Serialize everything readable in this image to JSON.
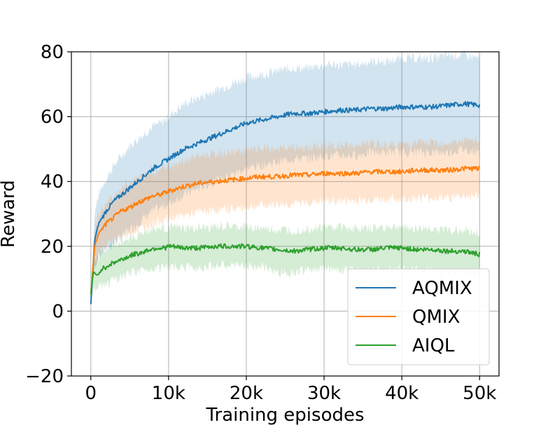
{
  "chart_data": {
    "type": "line",
    "title": "",
    "xlabel": "Training episodes",
    "ylabel": "Reward",
    "xlim": [
      -2500,
      52500
    ],
    "ylim": [
      -20,
      80
    ],
    "grid": true,
    "legend_position": "lower-right",
    "x_ticks": [
      {
        "value": 0,
        "label": "0"
      },
      {
        "value": 10000,
        "label": "10k"
      },
      {
        "value": 20000,
        "label": "20k"
      },
      {
        "value": 30000,
        "label": "30k"
      },
      {
        "value": 40000,
        "label": "40k"
      },
      {
        "value": 50000,
        "label": "50k"
      }
    ],
    "y_ticks": [
      {
        "value": -20,
        "label": "−20"
      },
      {
        "value": 0,
        "label": "0"
      },
      {
        "value": 20,
        "label": "20"
      },
      {
        "value": 40,
        "label": "40"
      },
      {
        "value": 60,
        "label": "60"
      },
      {
        "value": 80,
        "label": "80"
      }
    ],
    "series": [
      {
        "name": "AQMIX",
        "color": "#1f77b4",
        "points": [
          [
            0,
            2
          ],
          [
            500,
            22
          ],
          [
            1000,
            27
          ],
          [
            2000,
            31
          ],
          [
            3000,
            34
          ],
          [
            4000,
            36
          ],
          [
            5000,
            38
          ],
          [
            6000,
            40
          ],
          [
            7000,
            42
          ],
          [
            8000,
            44
          ],
          [
            9000,
            45.5
          ],
          [
            10000,
            47
          ],
          [
            12000,
            50
          ],
          [
            14000,
            52
          ],
          [
            16000,
            54
          ],
          [
            18000,
            56
          ],
          [
            20000,
            58
          ],
          [
            22000,
            59
          ],
          [
            24000,
            60
          ],
          [
            26000,
            61
          ],
          [
            28000,
            61
          ],
          [
            30000,
            61.5
          ],
          [
            32000,
            62
          ],
          [
            34000,
            62
          ],
          [
            36000,
            62.5
          ],
          [
            38000,
            62.5
          ],
          [
            40000,
            63
          ],
          [
            42000,
            63
          ],
          [
            44000,
            63
          ],
          [
            46000,
            63.5
          ],
          [
            48000,
            64
          ],
          [
            50000,
            63.5
          ]
        ],
        "band": [
          [
            0,
            2,
            5
          ],
          [
            500,
            14,
            30
          ],
          [
            1000,
            17,
            36
          ],
          [
            2000,
            19,
            41
          ],
          [
            3000,
            21,
            45
          ],
          [
            4000,
            23,
            48
          ],
          [
            5000,
            25,
            51
          ],
          [
            6000,
            27,
            53
          ],
          [
            7000,
            29,
            55
          ],
          [
            8000,
            31,
            57
          ],
          [
            9000,
            32,
            58
          ],
          [
            10000,
            33,
            60
          ],
          [
            12000,
            36,
            64
          ],
          [
            14000,
            38,
            66
          ],
          [
            16000,
            40,
            68
          ],
          [
            18000,
            42,
            70
          ],
          [
            20000,
            44,
            72
          ],
          [
            22000,
            45,
            73
          ],
          [
            24000,
            46,
            74
          ],
          [
            26000,
            47,
            75
          ],
          [
            28000,
            47,
            75
          ],
          [
            30000,
            48,
            76
          ],
          [
            32000,
            48,
            76
          ],
          [
            34000,
            48,
            76
          ],
          [
            36000,
            49,
            77
          ],
          [
            38000,
            49,
            77
          ],
          [
            40000,
            49,
            78
          ],
          [
            42000,
            49,
            78
          ],
          [
            44000,
            49,
            78
          ],
          [
            46000,
            49,
            79
          ],
          [
            48000,
            50,
            79
          ],
          [
            50000,
            49,
            78
          ]
        ]
      },
      {
        "name": "QMIX",
        "color": "#ff7f0e",
        "points": [
          [
            0,
            5
          ],
          [
            500,
            20
          ],
          [
            1000,
            24
          ],
          [
            2000,
            27
          ],
          [
            3000,
            29
          ],
          [
            4000,
            31
          ],
          [
            5000,
            32
          ],
          [
            6000,
            33.5
          ],
          [
            7000,
            34.5
          ],
          [
            8000,
            35.5
          ],
          [
            9000,
            36
          ],
          [
            10000,
            37
          ],
          [
            12000,
            38.5
          ],
          [
            14000,
            39.5
          ],
          [
            16000,
            40
          ],
          [
            18000,
            40.5
          ],
          [
            20000,
            41
          ],
          [
            22000,
            41.5
          ],
          [
            24000,
            41.5
          ],
          [
            26000,
            42
          ],
          [
            28000,
            42
          ],
          [
            30000,
            42.5
          ],
          [
            32000,
            42.5
          ],
          [
            34000,
            42.5
          ],
          [
            36000,
            43
          ],
          [
            38000,
            43
          ],
          [
            40000,
            43
          ],
          [
            42000,
            43.5
          ],
          [
            44000,
            43.5
          ],
          [
            46000,
            43.5
          ],
          [
            48000,
            44
          ],
          [
            50000,
            44
          ]
        ],
        "band": [
          [
            0,
            4,
            7
          ],
          [
            500,
            14,
            25
          ],
          [
            1000,
            18,
            30
          ],
          [
            2000,
            20,
            33
          ],
          [
            3000,
            22,
            36
          ],
          [
            4000,
            23,
            38
          ],
          [
            5000,
            24,
            40
          ],
          [
            6000,
            25,
            41
          ],
          [
            7000,
            26,
            42
          ],
          [
            8000,
            27,
            43
          ],
          [
            9000,
            28,
            44
          ],
          [
            10000,
            28.5,
            45
          ],
          [
            12000,
            29.5,
            46.5
          ],
          [
            14000,
            30.5,
            48
          ],
          [
            16000,
            31,
            48.5
          ],
          [
            18000,
            31.5,
            49
          ],
          [
            20000,
            32,
            49.5
          ],
          [
            22000,
            32.5,
            50
          ],
          [
            24000,
            33,
            50
          ],
          [
            26000,
            33,
            50.5
          ],
          [
            28000,
            33.5,
            50.5
          ],
          [
            30000,
            34,
            51
          ],
          [
            32000,
            34,
            51
          ],
          [
            34000,
            34,
            51
          ],
          [
            36000,
            34.5,
            51.5
          ],
          [
            38000,
            34.5,
            51.5
          ],
          [
            40000,
            34.5,
            51.5
          ],
          [
            42000,
            35,
            52
          ],
          [
            44000,
            35,
            52
          ],
          [
            46000,
            35,
            52
          ],
          [
            48000,
            35.5,
            52.5
          ],
          [
            50000,
            35.5,
            52.5
          ]
        ]
      },
      {
        "name": "AIQL",
        "color": "#2ca02c",
        "points": [
          [
            0,
            5
          ],
          [
            300,
            12
          ],
          [
            800,
            11
          ],
          [
            1500,
            13
          ],
          [
            2500,
            14.5
          ],
          [
            3500,
            15.5
          ],
          [
            4500,
            16.5
          ],
          [
            5500,
            17.5
          ],
          [
            6500,
            18
          ],
          [
            7500,
            19
          ],
          [
            8500,
            19.5
          ],
          [
            9500,
            19.5
          ],
          [
            10000,
            20
          ],
          [
            12000,
            19.5
          ],
          [
            14000,
            19.5
          ],
          [
            16000,
            20
          ],
          [
            18000,
            20
          ],
          [
            20000,
            20
          ],
          [
            22000,
            19.5
          ],
          [
            24000,
            19
          ],
          [
            26000,
            18.5
          ],
          [
            28000,
            19
          ],
          [
            30000,
            19.5
          ],
          [
            32000,
            19.5
          ],
          [
            34000,
            19
          ],
          [
            36000,
            19
          ],
          [
            38000,
            19.5
          ],
          [
            40000,
            19.5
          ],
          [
            42000,
            19
          ],
          [
            44000,
            19
          ],
          [
            46000,
            18.5
          ],
          [
            48000,
            18.5
          ],
          [
            50000,
            17.5
          ]
        ],
        "band": [
          [
            0,
            3,
            7
          ],
          [
            300,
            7,
            17
          ],
          [
            800,
            7,
            16
          ],
          [
            1500,
            8,
            18
          ],
          [
            2500,
            9,
            20
          ],
          [
            3500,
            10,
            21
          ],
          [
            4500,
            11,
            22
          ],
          [
            5500,
            12,
            23
          ],
          [
            6500,
            12.5,
            24
          ],
          [
            7500,
            13,
            25
          ],
          [
            8500,
            13.5,
            25.5
          ],
          [
            9500,
            13.5,
            25.5
          ],
          [
            10000,
            14,
            26
          ],
          [
            12000,
            13.5,
            25.5
          ],
          [
            14000,
            13.5,
            25.5
          ],
          [
            16000,
            14,
            26
          ],
          [
            18000,
            14,
            26
          ],
          [
            20000,
            14,
            26
          ],
          [
            22000,
            13.5,
            25.5
          ],
          [
            24000,
            12,
            25
          ],
          [
            26000,
            12,
            25
          ],
          [
            28000,
            12.5,
            25.5
          ],
          [
            30000,
            13,
            26
          ],
          [
            32000,
            13,
            26
          ],
          [
            34000,
            12.5,
            25.5
          ],
          [
            36000,
            12.5,
            25.5
          ],
          [
            38000,
            13,
            26
          ],
          [
            40000,
            13,
            26
          ],
          [
            42000,
            12.5,
            25.5
          ],
          [
            44000,
            12.5,
            25.5
          ],
          [
            46000,
            12,
            25
          ],
          [
            48000,
            12,
            25
          ],
          [
            50000,
            11.5,
            24
          ]
        ]
      }
    ]
  }
}
